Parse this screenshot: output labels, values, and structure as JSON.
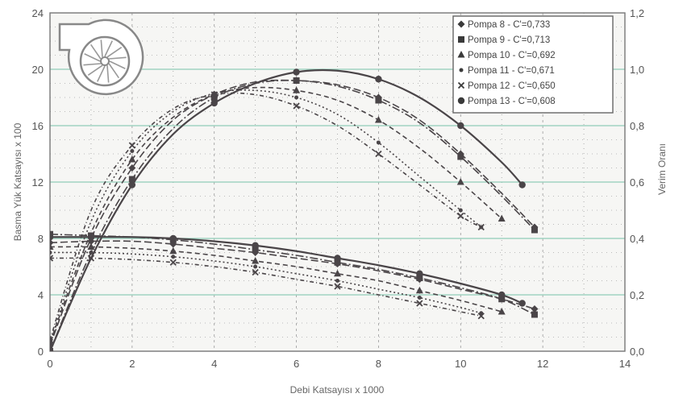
{
  "chart_data": {
    "type": "line",
    "title": "",
    "xlabel": "Debi Katsayısı x 1000",
    "ylabel": "Basma Yük Katsayısı x 100",
    "y2label": "Verim Oranı",
    "xlim": [
      0,
      14
    ],
    "ylim": [
      0,
      24
    ],
    "y2lim": [
      0,
      1.2
    ],
    "xticks": [
      "0",
      "2",
      "4",
      "6",
      "8",
      "10",
      "12",
      "14"
    ],
    "yticks": [
      "0",
      "4",
      "8",
      "12",
      "16",
      "20",
      "24"
    ],
    "y2ticks": [
      "0,0",
      "0,2",
      "0,4",
      "0,6",
      "0,8",
      "1,0",
      "1,2"
    ],
    "grid": true,
    "legend_position": "top-right",
    "legend": [
      "Pompa  8 - C'=0,733",
      "Pompa  9 - C'=0,713",
      "Pompa 10 - C'=0,692",
      "Pompa 11 - C'=0,671",
      "Pompa 12 - C'=0,650",
      "Pompa 13 - C'=0,608"
    ],
    "series": [
      {
        "legend_index": 0,
        "marker": "diamond",
        "dash": "9,4",
        "kind": "efficiency",
        "x": [
          0,
          1,
          2,
          3,
          4,
          5,
          6,
          7,
          8,
          9,
          10,
          11,
          11.8
        ],
        "y": [
          0.02,
          0.4,
          0.65,
          0.82,
          0.91,
          0.955,
          0.96,
          0.945,
          0.9,
          0.82,
          0.7,
          0.56,
          0.44
        ]
      },
      {
        "legend_index": 0,
        "marker": "diamond",
        "dash": "9,4",
        "kind": "head",
        "x": [
          0,
          1,
          2,
          3,
          4,
          5,
          6,
          7,
          8,
          9,
          10,
          11,
          11.8
        ],
        "y": [
          7.7,
          7.8,
          7.8,
          7.6,
          7.3,
          7.0,
          6.6,
          6.2,
          5.7,
          5.1,
          4.4,
          3.7,
          3.0
        ]
      },
      {
        "legend_index": 1,
        "marker": "square",
        "dash": "10,3,2,3",
        "kind": "efficiency",
        "x": [
          0,
          1,
          2,
          3,
          4,
          5,
          6,
          7,
          8,
          9,
          10,
          11,
          11.8
        ],
        "y": [
          0.0,
          0.35,
          0.61,
          0.79,
          0.9,
          0.95,
          0.96,
          0.94,
          0.89,
          0.81,
          0.69,
          0.55,
          0.43
        ]
      },
      {
        "legend_index": 1,
        "marker": "square",
        "dash": "10,3,2,3",
        "kind": "head",
        "x": [
          0,
          1,
          2,
          3,
          4,
          5,
          6,
          7,
          8,
          9,
          10,
          11,
          11.8
        ],
        "y": [
          8.3,
          8.2,
          8.1,
          7.9,
          7.6,
          7.2,
          6.8,
          6.3,
          5.8,
          5.2,
          4.5,
          3.7,
          2.6
        ]
      },
      {
        "legend_index": 2,
        "marker": "triangle",
        "dash": "6,4",
        "kind": "efficiency",
        "x": [
          0,
          1,
          2,
          3,
          4,
          5,
          6,
          7,
          8,
          9,
          10,
          11
        ],
        "y": [
          0.03,
          0.42,
          0.68,
          0.83,
          0.91,
          0.935,
          0.925,
          0.89,
          0.82,
          0.72,
          0.6,
          0.47
        ]
      },
      {
        "legend_index": 2,
        "marker": "triangle",
        "dash": "6,4",
        "kind": "head",
        "x": [
          0,
          1,
          2,
          3,
          4,
          5,
          6,
          7,
          8,
          9,
          10,
          11
        ],
        "y": [
          7.4,
          7.4,
          7.3,
          7.1,
          6.8,
          6.4,
          6.0,
          5.5,
          5.0,
          4.3,
          3.6,
          2.8
        ]
      },
      {
        "legend_index": 3,
        "marker": "circle-small",
        "dash": "2,3",
        "kind": "efficiency",
        "x": [
          0,
          1,
          2,
          3,
          4,
          5,
          6,
          7,
          8,
          9,
          10,
          10.5
        ],
        "y": [
          0.03,
          0.46,
          0.71,
          0.85,
          0.915,
          0.925,
          0.9,
          0.84,
          0.74,
          0.62,
          0.5,
          0.44
        ]
      },
      {
        "legend_index": 3,
        "marker": "circle-small",
        "dash": "2,3",
        "kind": "head",
        "x": [
          0,
          1,
          2,
          3,
          4,
          5,
          6,
          7,
          8,
          9,
          10,
          10.5
        ],
        "y": [
          7.0,
          7.0,
          6.9,
          6.7,
          6.4,
          6.0,
          5.5,
          5.0,
          4.4,
          3.8,
          3.1,
          2.7
        ]
      },
      {
        "legend_index": 4,
        "marker": "cross",
        "dash": "5,3,1,3",
        "kind": "efficiency",
        "x": [
          0,
          1,
          2,
          3,
          4,
          5,
          6,
          7,
          8,
          9,
          10,
          10.5
        ],
        "y": [
          0.04,
          0.5,
          0.73,
          0.86,
          0.91,
          0.91,
          0.87,
          0.8,
          0.7,
          0.59,
          0.48,
          0.44
        ]
      },
      {
        "legend_index": 4,
        "marker": "cross",
        "dash": "5,3,1,3",
        "kind": "head",
        "x": [
          0,
          1,
          2,
          3,
          4,
          5,
          6,
          7,
          8,
          9,
          10,
          10.5
        ],
        "y": [
          6.6,
          6.6,
          6.5,
          6.3,
          6.0,
          5.6,
          5.1,
          4.6,
          4.0,
          3.4,
          2.8,
          2.5
        ]
      },
      {
        "legend_index": 5,
        "marker": "circle",
        "dash": "",
        "kind": "efficiency",
        "x": [
          0,
          1,
          2,
          3,
          4,
          5,
          6,
          7,
          8,
          9,
          10,
          11,
          11.5
        ],
        "y": [
          0.0,
          0.33,
          0.59,
          0.77,
          0.88,
          0.95,
          0.99,
          0.995,
          0.965,
          0.9,
          0.8,
          0.67,
          0.59
        ]
      },
      {
        "legend_index": 5,
        "marker": "circle",
        "dash": "",
        "kind": "head",
        "x": [
          0,
          1,
          2,
          3,
          4,
          5,
          6,
          7,
          8,
          9,
          10,
          11,
          11.5
        ],
        "y": [
          8.1,
          8.1,
          8.1,
          8.0,
          7.8,
          7.5,
          7.1,
          6.6,
          6.1,
          5.5,
          4.8,
          4.0,
          3.4
        ]
      }
    ]
  }
}
